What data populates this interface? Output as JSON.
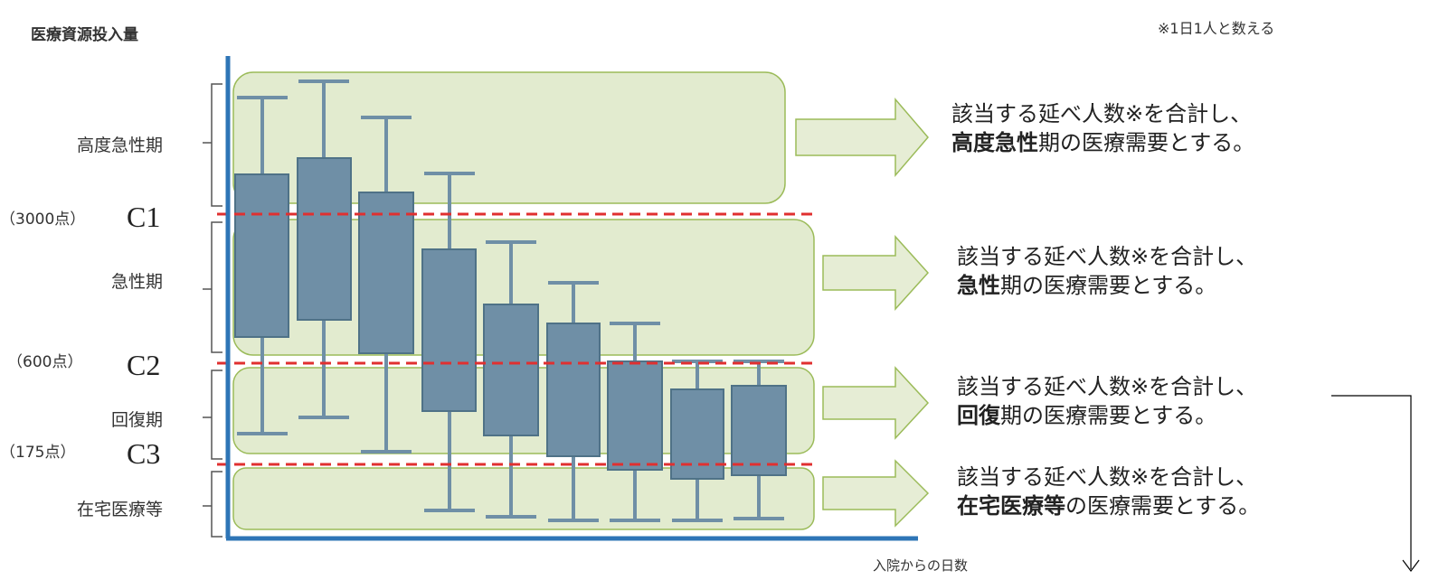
{
  "y_axis_title": "医療資源投入量",
  "note": "※1日1人と数える",
  "x_axis_title": "入院からの日数",
  "phases": [
    {
      "label": "高度急性期"
    },
    {
      "label": "急性期"
    },
    {
      "label": "回復期"
    },
    {
      "label": "在宅医療等"
    }
  ],
  "thresholds": [
    {
      "points": "（3000点）",
      "id": "C1"
    },
    {
      "points": "（600点）",
      "id": "C2"
    },
    {
      "points": "（175点）",
      "id": "C3"
    }
  ],
  "results": [
    {
      "line1": "該当する延べ人数※を合計し、",
      "bold": "高度急性",
      "tail": "期の医療需要とする。"
    },
    {
      "line1": "該当する延べ人数※を合計し、",
      "bold": "急性",
      "tail": "期の医療需要とする。"
    },
    {
      "line1": "該当する延べ人数※を合計し、",
      "bold": "回復",
      "tail": "期の医療需要とする。"
    },
    {
      "line1": "該当する延べ人数※を合計し、",
      "bold": "在宅医療等",
      "tail": "の医療需要とする。"
    }
  ],
  "colors": {
    "axis": "#2e75b6",
    "band_fill": "#dde7c7",
    "band_stroke": "#9bbb59",
    "box_fill": "#6f8fa6",
    "box_stroke": "#4f7287",
    "whisker": "#6f8fa6",
    "threshold_line": "#e03030",
    "arrow_fill": "#e6edd5",
    "arrow_stroke": "#9bbb59"
  }
}
